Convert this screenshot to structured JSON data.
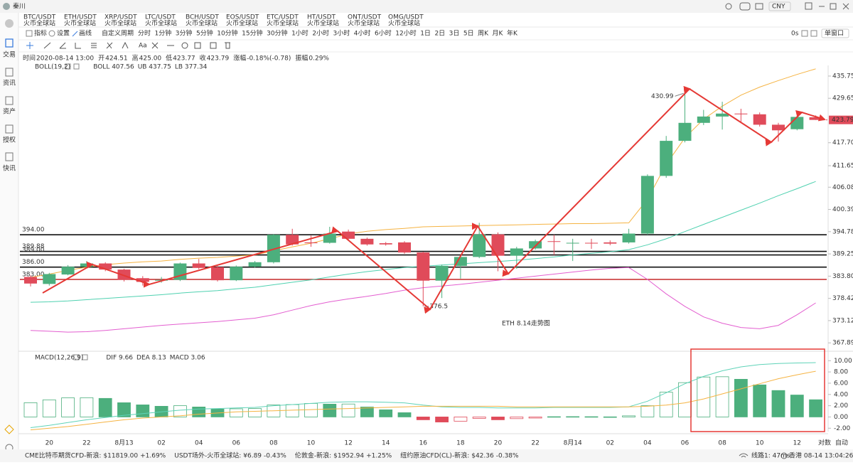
{
  "ui": {
    "user": "秦川",
    "currency": "CNY",
    "tabs": [
      {
        "pair": "BTC/USDT",
        "exchange": "火币全球站"
      },
      {
        "pair": "ETH/USDT",
        "exchange": "火币全球站"
      },
      {
        "pair": "XRP/USDT",
        "exchange": "火币全球站"
      },
      {
        "pair": "LTC/USDT",
        "exchange": "火币全球站"
      },
      {
        "pair": "BCH/USDT",
        "exchange": "火币全球站"
      },
      {
        "pair": "EOS/USDT",
        "exchange": "火币全球站"
      },
      {
        "pair": "ETC/USDT",
        "exchange": "火币全球站"
      },
      {
        "pair": "HT/USDT",
        "exchange": "火币全球站"
      },
      {
        "pair": "ONT/USDT",
        "exchange": "火币全球站"
      },
      {
        "pair": "OMG/USDT",
        "exchange": "火币全球站"
      }
    ],
    "sidebar": [
      "交易",
      "资讯",
      "资产",
      "授权",
      "快讯"
    ],
    "toolbar": [
      "指标",
      "设置",
      "画线",
      "自定义周期"
    ],
    "periods": [
      "分时",
      "1分钟",
      "3分钟",
      "5分钟",
      "10分钟",
      "15分钟",
      "30分钟",
      "1小时",
      "2小时",
      "3小时",
      "4小时",
      "6小时",
      "12小时",
      "1日",
      "2日",
      "3日",
      "5日",
      "周K",
      "月K",
      "年K"
    ],
    "toolbar_right": [
      "0s",
      "单窗口"
    ],
    "info": [
      [
        "时间",
        "2020-08-14 13:00"
      ],
      [
        "开",
        "424.51"
      ],
      [
        "高",
        "425.00"
      ],
      [
        "低",
        "423.77"
      ],
      [
        "收",
        "423.79"
      ],
      [
        "涨幅",
        "-0.18%(-0.78)"
      ],
      [
        "振幅",
        "0.29%"
      ]
    ],
    "boll_header": [
      "BOLL(19,2)",
      "BOLL 407.56",
      "UB 437.75",
      "LB 377.34"
    ],
    "macd_header": [
      "MACD(12,26,9)",
      "DIF 9.66",
      "DEA 8.13",
      "MACD 3.06"
    ],
    "axis_modes": [
      "对数",
      "自动"
    ],
    "status": [
      [
        "CME比特币期货CFD-新浪:",
        "$11819.00",
        "+1.69%"
      ],
      [
        "USDT场外-火币全球站:",
        "¥6.89",
        "-0.43%"
      ],
      [
        "伦敦金-新浪:",
        "$1952.94",
        "+1.25%"
      ],
      [
        "纽约原油CFD(CL)-新浪:",
        "$42.36",
        "-0.38%"
      ]
    ],
    "status_right": [
      "线路1: 47ms",
      "香港 08-14 13:04:26"
    ]
  },
  "chart_data": [
    {
      "type": "candlestick",
      "log": true,
      "ylim": [
        366.6,
        438.7
      ],
      "yticks": [
        435.75,
        429.65,
        {
          "value": 417.7,
          "label": "417.70"
        },
        411.65,
        406.08,
        400.39,
        394.78,
        389.25,
        {
          "value": 383.8,
          "label": "383.80"
        },
        378.42,
        373.12,
        367.89
      ],
      "up_color": "#4caf7d",
      "down_color": "#e04b5a",
      "open": [
        383.6,
        381.9,
        384.2,
        386.1,
        386.9,
        385.4,
        383.3,
        382.7,
        382.9,
        386.9,
        386.0,
        382.8,
        386.1,
        387.2,
        394.0,
        392.1,
        392.0,
        394.8,
        393.0,
        391.9,
        392.1,
        389.6,
        382.7,
        386.3,
        388.5,
        394.1,
        388.8,
        390.6,
        392.4,
        391.9,
        392.0,
        392.1,
        392.1,
        394.3,
        409.0,
        418.2,
        423.0,
        424.7,
        425.5,
        425.3,
        422.5,
        421.3,
        424.51
      ],
      "high": [
        384.0,
        384.6,
        386.5,
        387.5,
        387.2,
        385.6,
        383.8,
        383.6,
        387.1,
        388.0,
        386.3,
        386.4,
        387.5,
        394.2,
        395.5,
        393.8,
        396.0,
        395.3,
        393.3,
        392.2,
        392.4,
        389.8,
        386.6,
        388.9,
        397.0,
        394.6,
        391.0,
        392.8,
        394.0,
        393.0,
        393.0,
        392.6,
        395.5,
        409.4,
        419.5,
        430.99,
        426.5,
        428.7,
        426.8,
        425.8,
        423.0,
        425.0,
        425.0
      ],
      "low": [
        381.3,
        381.5,
        384.0,
        385.8,
        385.0,
        382.5,
        381.5,
        382.2,
        382.6,
        385.5,
        382.5,
        382.6,
        385.9,
        386.9,
        391.3,
        391.0,
        391.8,
        392.6,
        391.3,
        391.3,
        389.3,
        376.5,
        378.5,
        383.2,
        388.2,
        385.0,
        385.6,
        390.3,
        389.0,
        387.5,
        390.5,
        391.4,
        391.8,
        394.0,
        408.5,
        417.8,
        422.4,
        421.2,
        423.3,
        422.0,
        418.0,
        421.0,
        423.77
      ],
      "close": [
        382.0,
        384.3,
        386.1,
        386.9,
        385.4,
        382.9,
        382.4,
        382.9,
        386.9,
        385.8,
        382.8,
        386.1,
        387.2,
        394.0,
        391.6,
        391.9,
        394.3,
        393.0,
        391.6,
        391.6,
        389.6,
        382.7,
        386.3,
        388.5,
        394.1,
        388.8,
        390.6,
        392.4,
        392.3,
        392.0,
        391.9,
        391.8,
        394.3,
        409.0,
        418.2,
        423.0,
        424.7,
        425.5,
        425.3,
        422.5,
        421.0,
        424.6,
        423.79
      ],
      "series": [
        {
          "color": "#4fd1b0",
          "values": [
            377.5,
            377.6,
            377.8,
            378.1,
            378.4,
            378.7,
            379.0,
            379.3,
            379.7,
            380.0,
            380.3,
            380.7,
            381.1,
            381.7,
            382.3,
            382.9,
            383.6,
            384.3,
            384.9,
            385.4,
            385.9,
            386.2,
            386.5,
            386.8,
            387.1,
            387.4,
            387.7,
            388.1,
            388.5,
            389.0,
            389.4,
            389.8,
            390.3,
            391.5,
            393.0,
            394.8,
            396.6,
            398.4,
            400.2,
            402.0,
            403.9,
            405.7,
            407.56
          ]
        },
        {
          "color": "#f5b342",
          "values": [
            383.5,
            384.3,
            385.2,
            386.0,
            386.6,
            387.0,
            387.3,
            387.5,
            387.9,
            388.2,
            388.4,
            388.7,
            389.0,
            390.0,
            391.0,
            391.9,
            393.0,
            394.2,
            394.9,
            395.3,
            395.6,
            396.0,
            396.1,
            396.2,
            396.3,
            396.4,
            396.5,
            396.6,
            396.7,
            396.8,
            396.8,
            396.9,
            397.0,
            403.0,
            412.0,
            419.0,
            424.0,
            427.5,
            430.5,
            432.7,
            434.5,
            436.2,
            437.75
          ]
        },
        {
          "color": "#e35ed0",
          "values": [
            370.8,
            370.6,
            370.4,
            370.5,
            370.8,
            371.2,
            371.6,
            372.0,
            372.3,
            372.6,
            372.9,
            373.3,
            373.7,
            374.5,
            375.6,
            376.7,
            377.6,
            378.3,
            378.9,
            379.6,
            380.4,
            381.0,
            381.4,
            381.8,
            382.3,
            382.8,
            383.3,
            383.8,
            384.3,
            384.8,
            385.3,
            385.7,
            385.9,
            383.0,
            379.5,
            376.5,
            374.0,
            372.5,
            371.5,
            371.2,
            372.0,
            374.5,
            377.34
          ]
        }
      ],
      "levels": [
        {
          "value": 394,
          "label": "394.00",
          "color": "#111111"
        },
        {
          "value": 389.88,
          "label": "389.88",
          "color": "#111111"
        },
        {
          "value": 389,
          "label": "389.00",
          "color": "#111111"
        },
        {
          "value": 386,
          "label": "386.00",
          "color": "#111111"
        },
        {
          "value": 383,
          "label": "383.00",
          "color": "#c62828"
        }
      ],
      "annotations": [
        {
          "value": 430.99,
          "label": "430.99"
        },
        {
          "value": 376.5,
          "label": "376.5"
        }
      ],
      "note": "ETH 8.14走势图"
    },
    {
      "type": "macd",
      "ylim": [
        -2.6,
        11.3
      ],
      "yticks": [
        {
          "value": 10,
          "label": "10.00"
        },
        {
          "value": 8,
          "label": "8.00"
        },
        {
          "value": 6,
          "label": "6.00"
        },
        {
          "value": 4,
          "label": "4.00"
        },
        {
          "value": 2,
          "label": "2.00"
        },
        {
          "value": 0,
          "label": "0.00"
        },
        {
          "value": -2,
          "label": "-2.00"
        }
      ],
      "categories": [
        null,
        "20",
        null,
        "22",
        null,
        "8月13",
        null,
        "02",
        null,
        "04",
        null,
        "06",
        null,
        "08",
        null,
        "10",
        null,
        "12",
        null,
        "14",
        null,
        "16",
        null,
        "18",
        null,
        "20",
        null,
        "22",
        null,
        "8月14",
        null,
        "02",
        null,
        "04",
        null,
        "06",
        null,
        "08",
        null,
        "10",
        null,
        "12",
        null
      ],
      "up_color": "#4caf7d",
      "down_color": "#e04b5a",
      "values": [
        2.53,
        3.04,
        3.4,
        3.42,
        3.3,
        2.53,
        2.15,
        1.9,
        2.0,
        1.77,
        1.4,
        1.45,
        1.5,
        2.15,
        2.2,
        2.4,
        2.28,
        2.3,
        1.77,
        1.27,
        0.76,
        -0.5,
        -0.9,
        -0.75,
        -0.25,
        -0.5,
        -0.3,
        -0.2,
        0.05,
        0.06,
        0.05,
        0.02,
        0.2,
        2.0,
        4.4,
        6.1,
        7.1,
        7.15,
        6.7,
        5.7,
        4.7,
        3.9,
        3.06
      ],
      "series": [
        {
          "color": "#5fd3b8",
          "values": [
            -1.9,
            -1.5,
            -1.0,
            -0.5,
            -0.1,
            0.3,
            0.6,
            0.9,
            1.2,
            1.4,
            1.5,
            1.6,
            1.7,
            2.0,
            2.2,
            2.4,
            2.6,
            2.7,
            2.7,
            2.6,
            2.5,
            2.1,
            1.8,
            1.7,
            1.7,
            1.6,
            1.6,
            1.6,
            1.7,
            1.7,
            1.7,
            1.7,
            1.8,
            2.8,
            4.3,
            5.9,
            7.2,
            8.2,
            8.9,
            9.3,
            9.5,
            9.6,
            9.66
          ]
        },
        {
          "color": "#f5b342",
          "values": [
            -2.3,
            -2.0,
            -1.7,
            -1.3,
            -0.9,
            -0.5,
            -0.2,
            0.0,
            0.2,
            0.5,
            0.7,
            0.9,
            1.0,
            1.1,
            1.2,
            1.3,
            1.4,
            1.5,
            1.6,
            1.7,
            1.8,
            1.9,
            1.9,
            1.9,
            1.9,
            1.9,
            1.8,
            1.8,
            1.8,
            1.8,
            1.8,
            1.8,
            1.8,
            1.9,
            2.1,
            2.5,
            3.2,
            4.1,
            5.0,
            5.9,
            6.8,
            7.5,
            8.13
          ]
        }
      ]
    }
  ]
}
